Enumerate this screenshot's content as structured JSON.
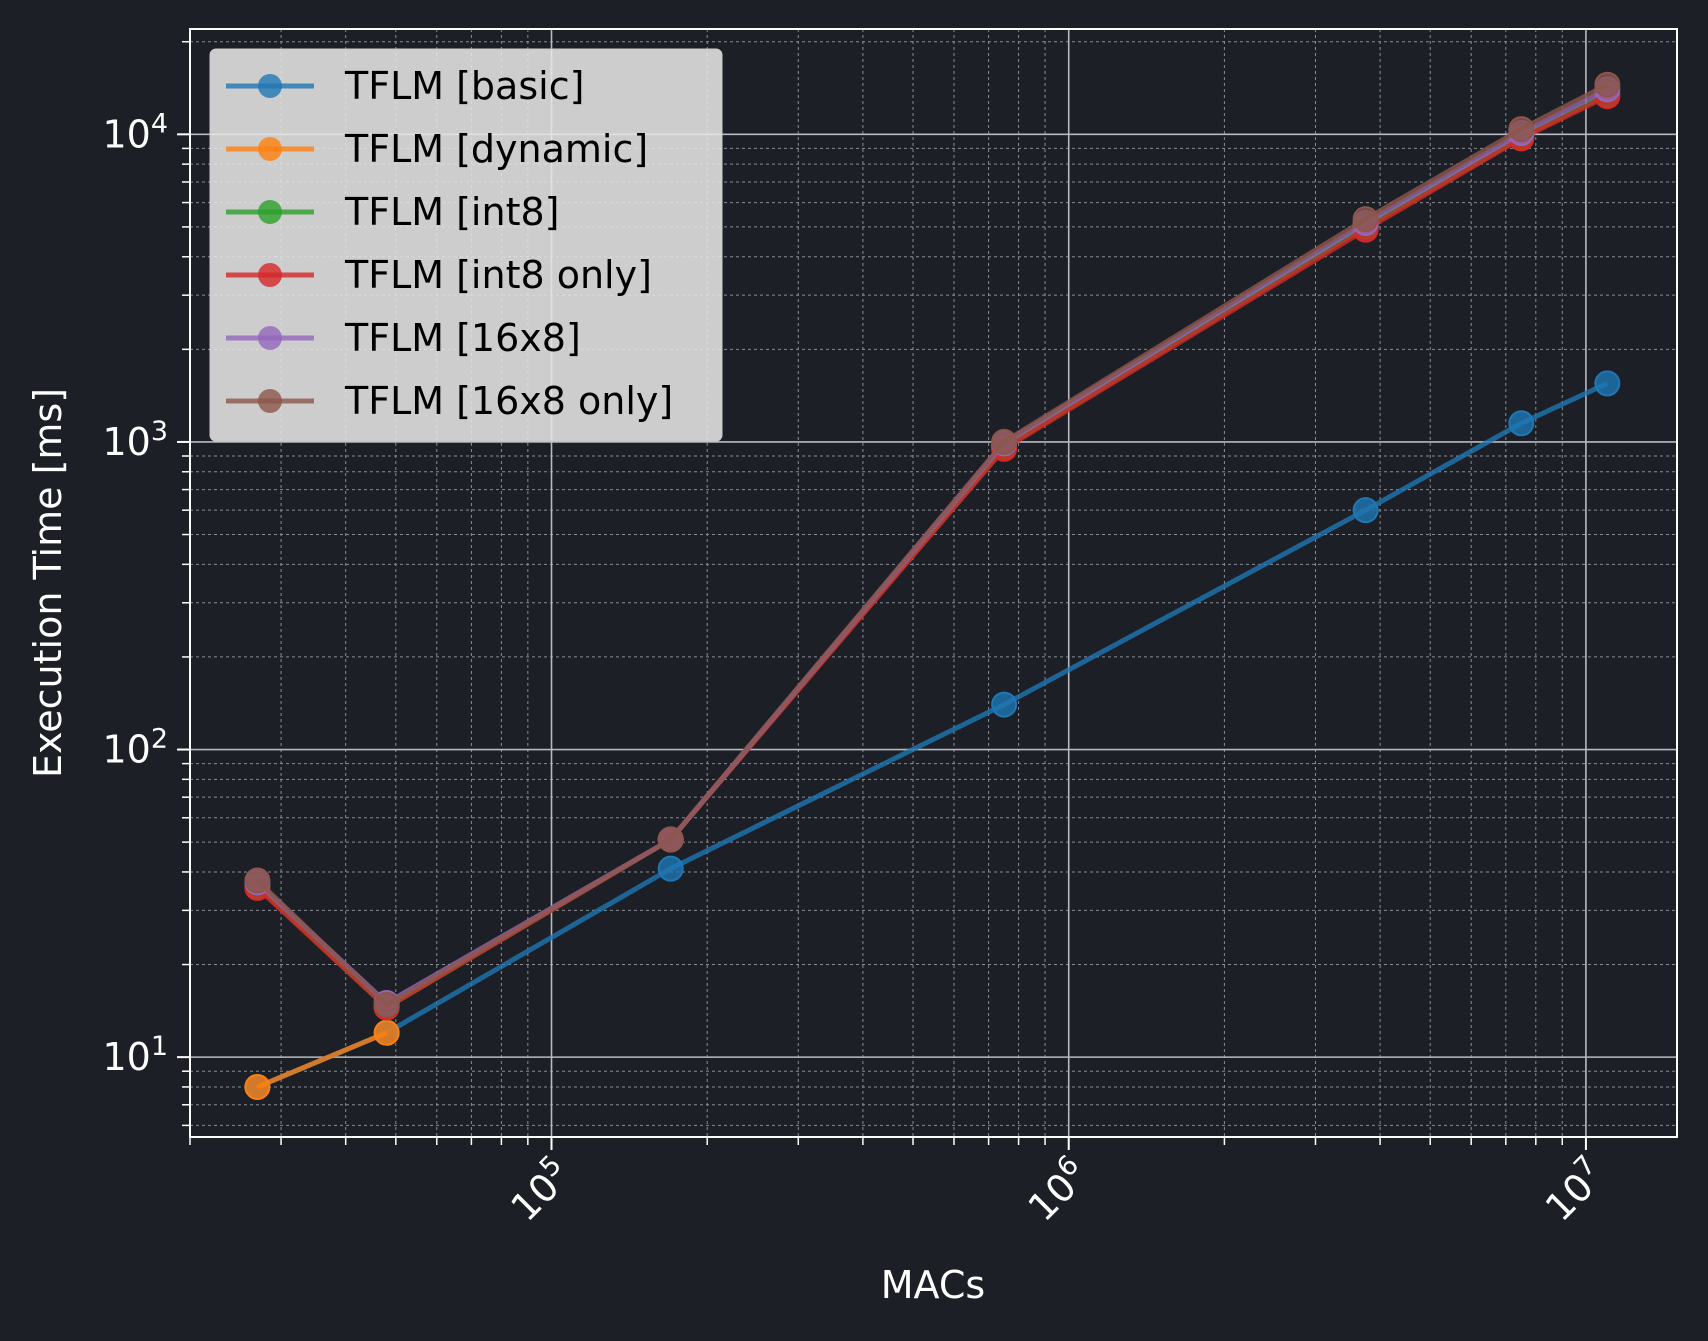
{
  "chart_data": {
    "type": "line",
    "xlabel": "MACs",
    "ylabel": "Execution Time [ms]",
    "x_scale": "log",
    "y_scale": "log",
    "xlim": [
      20000,
      15000000
    ],
    "ylim": [
      5.5,
      22000
    ],
    "x_ticks": [
      {
        "value": 100000,
        "base": "10",
        "exp": "5"
      },
      {
        "value": 1000000,
        "base": "10",
        "exp": "6"
      },
      {
        "value": 10000000,
        "base": "10",
        "exp": "7"
      }
    ],
    "y_ticks": [
      {
        "value": 10,
        "base": "10",
        "exp": "1"
      },
      {
        "value": 100,
        "base": "10",
        "exp": "2"
      },
      {
        "value": 1000,
        "base": "10",
        "exp": "3"
      },
      {
        "value": 10000,
        "base": "10",
        "exp": "4"
      }
    ],
    "grid": true,
    "legend_position": "top-left",
    "x": [
      27000,
      48000,
      170000,
      750000,
      3750000,
      7500000,
      11000000
    ],
    "series": [
      {
        "name": "TFLM [basic]",
        "color": "#1f77b4",
        "values": [
          8,
          12,
          41,
          140,
          600,
          1150,
          1550
        ]
      },
      {
        "name": "TFLM [dynamic]",
        "color": "#ff7f0e",
        "values": [
          8,
          12,
          null,
          null,
          null,
          null,
          null
        ]
      },
      {
        "name": "TFLM [int8]",
        "color": "#2ca02c",
        "values": [
          36,
          14.5,
          51,
          960,
          5000,
          9800,
          13500
        ]
      },
      {
        "name": "TFLM [int8 only]",
        "color": "#d62728",
        "values": [
          35.5,
          14.5,
          51,
          950,
          4900,
          9700,
          13300
        ]
      },
      {
        "name": "TFLM [16x8]",
        "color": "#9467bd",
        "values": [
          37,
          15,
          51,
          990,
          5150,
          10100,
          14000
        ]
      },
      {
        "name": "TFLM [16x8 only]",
        "color": "#8c564b",
        "values": [
          37.5,
          14.8,
          51,
          1000,
          5300,
          10400,
          14500
        ]
      }
    ]
  }
}
